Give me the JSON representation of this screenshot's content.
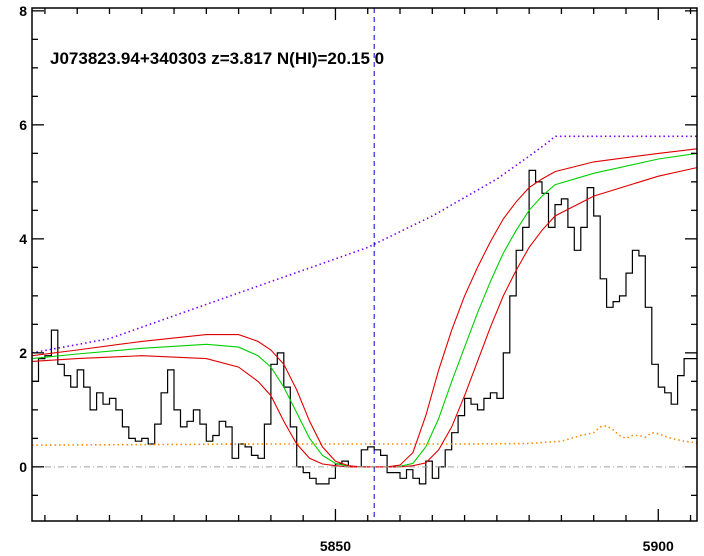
{
  "chart_data": {
    "type": "line",
    "title": "J073823.94+340303 z=3.817 N(HI)=20.15 0",
    "xlabel": "",
    "ylabel": "",
    "xlim": [
      5803,
      5906
    ],
    "ylim": [
      -0.95,
      8.05
    ],
    "x_ticks": [
      5850,
      5900
    ],
    "x_tick_labels": [
      "5850",
      "5900"
    ],
    "y_ticks": [
      0,
      2,
      4,
      6,
      8
    ],
    "y_tick_labels": [
      "0",
      "2",
      "4",
      "6",
      "8"
    ],
    "grid": false,
    "legend": "none",
    "colors": {
      "flux": "#000000",
      "error": "#ff8c00",
      "continuum": "#7a00ff",
      "model_best": "#00d000",
      "model_bounds": "#e00000",
      "center_line": "#0000cc",
      "zero_line": "#a0a0a0"
    },
    "center_wavelength": 5856.0,
    "series": [
      {
        "style": "step",
        "color": "#000000",
        "x": [
          5803.5,
          5804.5,
          5805.5,
          5806.5,
          5807.5,
          5808.5,
          5809.5,
          5810.5,
          5811.5,
          5812.5,
          5813.5,
          5814.5,
          5815.5,
          5816.5,
          5817.5,
          5818.5,
          5819.5,
          5820.5,
          5821.5,
          5822.5,
          5823.5,
          5824.5,
          5825.5,
          5826.5,
          5827.5,
          5828.5,
          5829.5,
          5830.5,
          5831.5,
          5832.5,
          5833.5,
          5834.5,
          5835.5,
          5836.5,
          5837.5,
          5838.5,
          5839.5,
          5840.5,
          5841.5,
          5842.5,
          5843.5,
          5844.5,
          5845.5,
          5846.5,
          5847.5,
          5848.5,
          5849.5,
          5850.5,
          5851.5,
          5852.5,
          5853.5,
          5854.5,
          5855.5,
          5856.5,
          5857.5,
          5858.5,
          5859.5,
          5860.5,
          5861.5,
          5862.5,
          5863.5,
          5864.5,
          5865.5,
          5866.5,
          5867.5,
          5868.5,
          5869.5,
          5870.5,
          5871.5,
          5872.5,
          5873.5,
          5874.5,
          5875.5,
          5876.5,
          5877.5,
          5878.5,
          5879.5,
          5880.5,
          5881.5,
          5882.5,
          5883.5,
          5884.5,
          5885.5,
          5886.5,
          5887.5,
          5888.5,
          5889.5,
          5890.5,
          5891.5,
          5892.5,
          5893.5,
          5894.5,
          5895.5,
          5896.5,
          5897.5,
          5898.5,
          5899.5,
          5900.5,
          5901.5,
          5902.5,
          5903.5,
          5904.5,
          5905.5
        ],
        "y": [
          1.5,
          1.9,
          1.95,
          2.4,
          1.8,
          1.6,
          1.4,
          1.7,
          1.4,
          1.0,
          1.3,
          1.1,
          1.2,
          1.0,
          0.7,
          0.5,
          0.45,
          0.5,
          0.4,
          0.75,
          1.3,
          1.7,
          1.0,
          0.7,
          0.8,
          1.0,
          0.75,
          0.45,
          0.55,
          0.8,
          0.7,
          0.15,
          0.4,
          0.35,
          0.2,
          0.15,
          0.75,
          1.8,
          2.0,
          1.4,
          0.7,
          0.0,
          -0.1,
          -0.2,
          -0.3,
          -0.3,
          -0.2,
          0.05,
          0.1,
          0.0,
          0.0,
          0.3,
          0.35,
          0.3,
          0.2,
          -0.1,
          -0.1,
          -0.2,
          -0.05,
          -0.2,
          -0.3,
          0.1,
          -0.2,
          0.0,
          0.3,
          0.6,
          0.9,
          1.2,
          1.1,
          1.0,
          1.2,
          1.3,
          1.2,
          2.0,
          3.0,
          3.8,
          4.2,
          5.2,
          5.0,
          4.8,
          4.2,
          4.6,
          4.7,
          4.2,
          3.8,
          4.2,
          4.9,
          4.4,
          3.3,
          2.8,
          2.9,
          3.0,
          3.4,
          3.8,
          3.7,
          2.8,
          1.8,
          1.4,
          1.3,
          1.1,
          1.6,
          1.9,
          1.9
        ]
      },
      {
        "style": "dotted",
        "color": "#ff8c00",
        "x": [
          5803,
          5820,
          5840,
          5850,
          5860,
          5870,
          5880,
          5885,
          5888,
          5890,
          5891,
          5892,
          5893,
          5894,
          5895,
          5896,
          5897,
          5898,
          5899,
          5900,
          5902,
          5904,
          5906
        ],
        "y": [
          0.38,
          0.39,
          0.4,
          0.4,
          0.4,
          0.4,
          0.41,
          0.45,
          0.55,
          0.6,
          0.7,
          0.72,
          0.65,
          0.55,
          0.5,
          0.55,
          0.55,
          0.52,
          0.6,
          0.58,
          0.5,
          0.45,
          0.42
        ]
      },
      {
        "style": "dotted",
        "color": "#7a00ff",
        "x": [
          5803,
          5815,
          5825,
          5835,
          5845,
          5855,
          5865,
          5875,
          5880,
          5883,
          5884,
          5890,
          5900,
          5906
        ],
        "y": [
          2.0,
          2.25,
          2.65,
          3.05,
          3.45,
          3.85,
          4.4,
          5.05,
          5.45,
          5.7,
          5.8,
          5.8,
          5.8,
          5.8
        ]
      },
      {
        "style": "solid",
        "color": "#00d000",
        "x": [
          5803,
          5810,
          5820,
          5830,
          5835,
          5838,
          5840,
          5842,
          5844,
          5846,
          5848,
          5850,
          5852,
          5854,
          5856,
          5858,
          5860,
          5862,
          5864,
          5866,
          5868,
          5870,
          5872,
          5874,
          5876,
          5878,
          5880,
          5882,
          5884,
          5890,
          5900,
          5906
        ],
        "y": [
          1.9,
          1.98,
          2.08,
          2.15,
          2.1,
          1.95,
          1.75,
          1.4,
          0.95,
          0.5,
          0.2,
          0.06,
          0.01,
          0.0,
          0.0,
          0.0,
          0.01,
          0.06,
          0.35,
          0.85,
          1.5,
          2.1,
          2.7,
          3.25,
          3.75,
          4.15,
          4.5,
          4.75,
          4.95,
          5.15,
          5.4,
          5.5
        ]
      },
      {
        "style": "solid",
        "color": "#e00000",
        "x": [
          5803,
          5810,
          5820,
          5830,
          5835,
          5838,
          5840,
          5842,
          5844,
          5846,
          5848,
          5850,
          5852,
          5854,
          5856,
          5858,
          5860,
          5862,
          5864,
          5866,
          5868,
          5870,
          5872,
          5874,
          5876,
          5878,
          5880,
          5882,
          5884,
          5890,
          5900,
          5906
        ],
        "y": [
          1.95,
          2.05,
          2.2,
          2.32,
          2.32,
          2.2,
          2.05,
          1.8,
          1.35,
          0.8,
          0.35,
          0.1,
          0.02,
          0.0,
          0.0,
          0.0,
          0.03,
          0.25,
          0.9,
          1.7,
          2.4,
          3.0,
          3.5,
          3.95,
          4.35,
          4.65,
          4.9,
          5.05,
          5.18,
          5.35,
          5.5,
          5.58
        ]
      },
      {
        "style": "solid",
        "color": "#e00000",
        "x": [
          5803,
          5810,
          5820,
          5830,
          5835,
          5838,
          5840,
          5842,
          5844,
          5846,
          5848,
          5850,
          5852,
          5854,
          5856,
          5858,
          5860,
          5862,
          5864,
          5866,
          5868,
          5870,
          5872,
          5874,
          5876,
          5878,
          5880,
          5882,
          5884,
          5890,
          5900,
          5906
        ],
        "y": [
          1.85,
          1.9,
          1.95,
          1.9,
          1.75,
          1.5,
          1.25,
          0.8,
          0.4,
          0.15,
          0.05,
          0.02,
          0.0,
          0.0,
          0.0,
          0.0,
          0.0,
          0.02,
          0.07,
          0.3,
          0.7,
          1.25,
          1.85,
          2.45,
          3.0,
          3.45,
          3.85,
          4.15,
          4.4,
          4.75,
          5.1,
          5.25
        ]
      }
    ]
  }
}
